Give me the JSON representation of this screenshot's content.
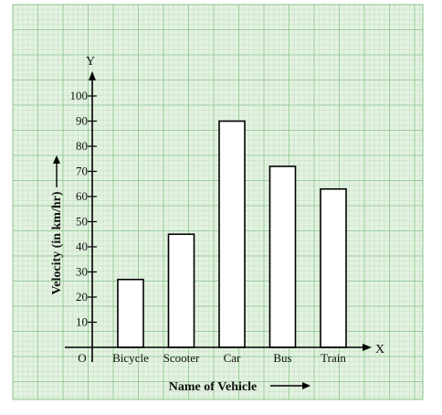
{
  "chart_data": {
    "type": "bar",
    "categories": [
      "Bicycle",
      "Scooter",
      "Car",
      "Bus",
      "Train"
    ],
    "values": [
      27,
      45,
      90,
      72,
      63
    ],
    "xlabel": "Name of Vehicle",
    "ylabel": "Velocity (in km/hr)",
    "ylim": [
      0,
      100
    ],
    "yticks": [
      10,
      20,
      30,
      40,
      50,
      60,
      70,
      80,
      90,
      100
    ],
    "y_axis_letter": "Y",
    "x_axis_letter": "X",
    "origin_label": "O",
    "grid": true,
    "colors": {
      "background": "#e4f2e2",
      "grid_minor": "#b5dab3",
      "grid_major": "#86c284",
      "bar_fill": "#ffffff",
      "bar_stroke": "#000000",
      "axis": "#000000"
    }
  }
}
